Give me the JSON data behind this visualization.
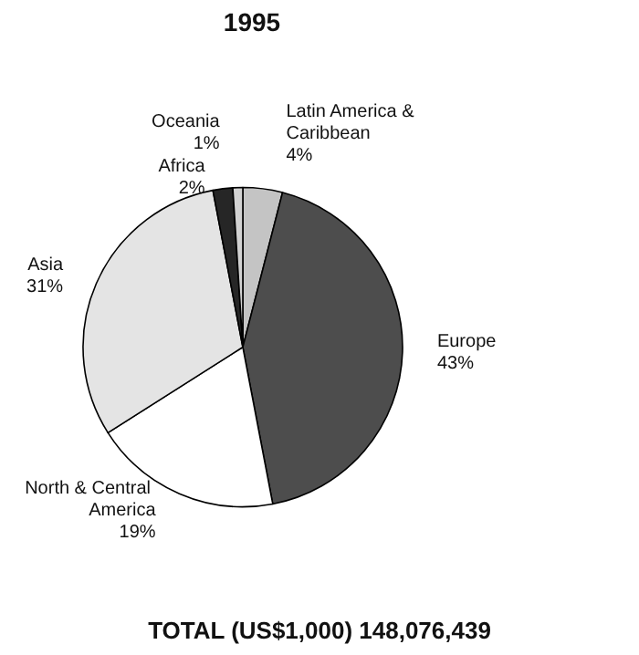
{
  "chart_data": {
    "type": "pie",
    "title": "1995",
    "categories": [
      "Latin America & Caribbean",
      "Europe",
      "North & Central America",
      "Asia",
      "Africa",
      "Oceania"
    ],
    "values": [
      4,
      43,
      19,
      31,
      2,
      1
    ],
    "value_labels": [
      "4%",
      "43%",
      "19%",
      "31%",
      "2%",
      "1%"
    ],
    "colors": [
      "#c4c4c4",
      "#4d4d4d",
      "#ffffff",
      "#e4e4e4",
      "#262626",
      "#d2d2d2"
    ],
    "annotations": [
      "TOTAL (US$1,000) 148,076,439"
    ]
  }
}
